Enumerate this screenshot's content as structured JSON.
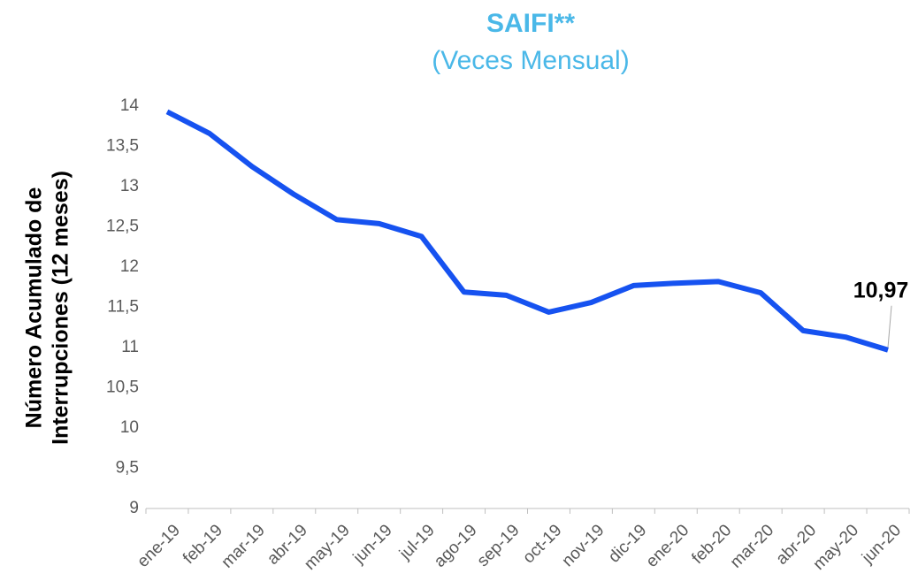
{
  "chart_data": {
    "type": "line",
    "title": "SAIFI**",
    "subtitle": "(Veces Mensual)",
    "ylabel": [
      "Número Acumulado de",
      "Interrupciones (12 meses)"
    ],
    "categories": [
      "ene-19",
      "feb-19",
      "mar-19",
      "abr-19",
      "may-19",
      "jun-19",
      "jul-19",
      "ago-19",
      "sep-19",
      "oct-19",
      "nov-19",
      "dic-19",
      "ene-20",
      "feb-20",
      "mar-20",
      "abr-20",
      "may-20",
      "jun-20"
    ],
    "series": [
      {
        "name": "SAIFI",
        "color": "#1652f0",
        "values": [
          13.93,
          13.66,
          13.25,
          12.9,
          12.59,
          12.54,
          12.38,
          11.69,
          11.65,
          11.44,
          11.56,
          11.77,
          11.8,
          11.82,
          11.68,
          11.21,
          11.13,
          10.97
        ],
        "value_labels": [
          null,
          null,
          null,
          null,
          null,
          null,
          null,
          null,
          null,
          null,
          null,
          null,
          null,
          null,
          null,
          null,
          null,
          "10,97"
        ]
      }
    ],
    "ylim": [
      9,
      14
    ],
    "yticks": [
      9,
      {
        "value": 9.5,
        "label": "9,5"
      },
      10,
      {
        "value": 10.5,
        "label": "10,5"
      },
      11,
      {
        "value": 11.5,
        "label": "11,5"
      },
      12,
      {
        "value": 12.5,
        "label": "12,5"
      },
      13,
      {
        "value": 13.5,
        "label": "13,5"
      },
      14
    ],
    "grid": false
  }
}
